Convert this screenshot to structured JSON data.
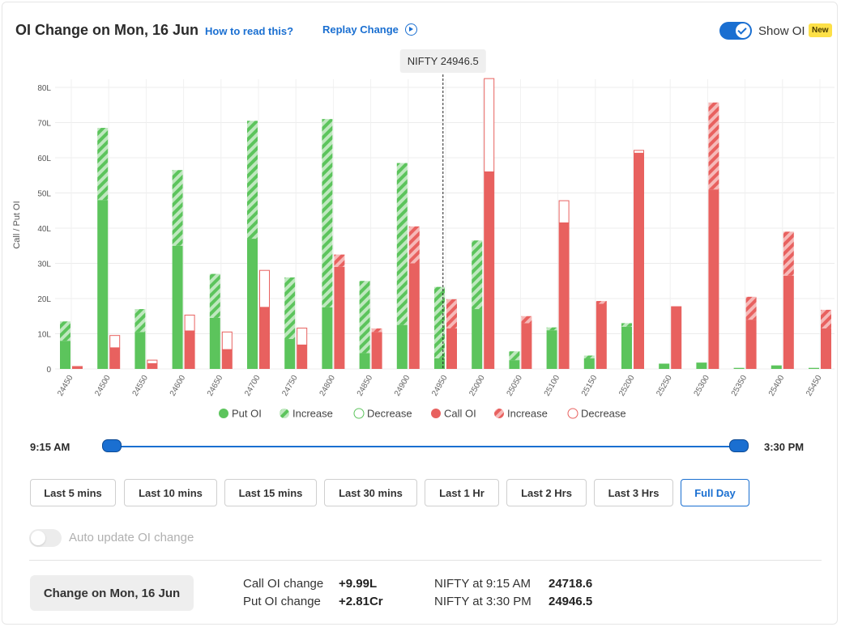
{
  "header": {
    "title": "OI Change on Mon, 16 Jun",
    "how_link": "How to read this?",
    "replay_link": "Replay Change",
    "show_oi_label": "Show OI",
    "new_badge": "New"
  },
  "tooltip": {
    "label": "NIFTY 24946.5"
  },
  "legend": {
    "items": [
      {
        "label": "Put OI",
        "style": "solid",
        "color": "#5cc45c"
      },
      {
        "label": "Increase",
        "style": "hatch",
        "color": "#5cc45c"
      },
      {
        "label": "Decrease",
        "style": "outline",
        "color": "#5cc45c"
      },
      {
        "label": "Call OI",
        "style": "solid",
        "color": "#e8615f"
      },
      {
        "label": "Increase",
        "style": "hatch",
        "color": "#e8615f"
      },
      {
        "label": "Decrease",
        "style": "outline",
        "color": "#e8615f"
      }
    ]
  },
  "chart_data": {
    "type": "bar",
    "ylabel": "Call / Put OI",
    "ylim": [
      0,
      80
    ],
    "yticks": [
      "0",
      "10L",
      "20L",
      "30L",
      "40L",
      "50L",
      "60L",
      "70L",
      "80L"
    ],
    "reference_line_x": 24946.5,
    "categories": [
      "24450",
      "24500",
      "24550",
      "24600",
      "24650",
      "24700",
      "24750",
      "24800",
      "24850",
      "24900",
      "24950",
      "25000",
      "25050",
      "25100",
      "25150",
      "25200",
      "25250",
      "25300",
      "25350",
      "25400",
      "25450"
    ],
    "put_oi": [
      8,
      48,
      10.5,
      35,
      14.5,
      37,
      8.5,
      17.5,
      4.5,
      12.5,
      3,
      17,
      2.5,
      11,
      3,
      12,
      1.5,
      1.8,
      0.3,
      1,
      0.3
    ],
    "put_oi_increase": [
      5.5,
      20.5,
      6.5,
      21.5,
      12.5,
      33.5,
      17.5,
      53.5,
      20.5,
      46,
      20.3,
      19.5,
      2.5,
      0.8,
      0.8,
      1,
      0,
      0,
      0,
      0,
      0
    ],
    "put_oi_decrease": [
      0,
      0,
      0,
      0,
      0,
      0,
      0,
      0,
      0,
      0,
      0,
      0,
      0,
      0,
      0,
      0,
      0,
      0,
      0,
      0,
      0
    ],
    "call_oi": [
      0.8,
      6,
      1.5,
      10.8,
      5.5,
      17.5,
      6.8,
      29,
      10.5,
      30,
      11.5,
      56,
      13,
      41.5,
      18.5,
      61.3,
      17.8,
      51,
      14,
      26.5,
      11.5
    ],
    "call_oi_increase": [
      0,
      0,
      0,
      0,
      0,
      0,
      0,
      3.5,
      1,
      10.5,
      8.3,
      0,
      2,
      0,
      0.8,
      0,
      0,
      24.7,
      6.5,
      12.5,
      5.3
    ],
    "call_oi_decrease": [
      0,
      3.5,
      1,
      4.5,
      5,
      10.5,
      4.8,
      0,
      0,
      0,
      0,
      26.5,
      0,
      6.3,
      0,
      0.8,
      0,
      0,
      0,
      0,
      0
    ]
  },
  "time_range": {
    "start": "9:15 AM",
    "end": "3:30 PM",
    "start_fraction": 0,
    "end_fraction": 1
  },
  "buttons": [
    {
      "label": "Last 5 mins",
      "active": false
    },
    {
      "label": "Last 10 mins",
      "active": false
    },
    {
      "label": "Last 15 mins",
      "active": false
    },
    {
      "label": "Last 30 mins",
      "active": false
    },
    {
      "label": "Last 1 Hr",
      "active": false
    },
    {
      "label": "Last 2 Hrs",
      "active": false
    },
    {
      "label": "Last 3 Hrs",
      "active": false
    },
    {
      "label": "Full Day",
      "active": true
    }
  ],
  "auto_update": {
    "label": "Auto update OI change",
    "enabled": false
  },
  "summary": {
    "change_button": "Change on Mon, 16 Jun",
    "call_oi_change_label": "Call OI change",
    "call_oi_change_value": "+9.99L",
    "put_oi_change_label": "Put OI change",
    "put_oi_change_value": "+2.81Cr",
    "nifty_open_label": "NIFTY at 9:15 AM",
    "nifty_open_value": "24718.6",
    "nifty_close_label": "NIFTY at 3:30 PM",
    "nifty_close_value": "24946.5"
  }
}
